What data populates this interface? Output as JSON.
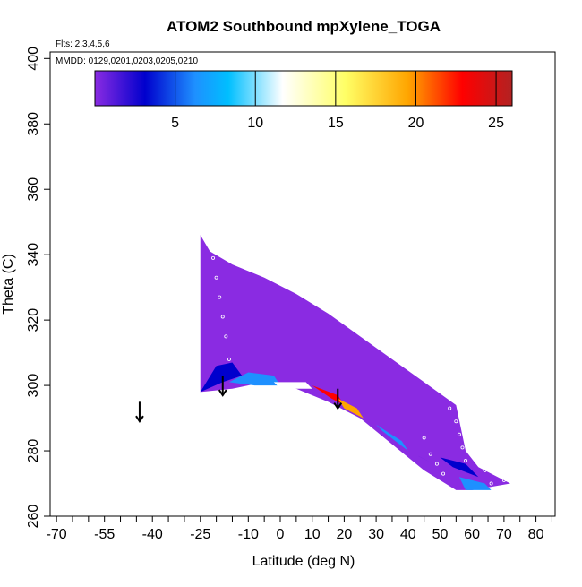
{
  "chart_data": {
    "type": "heatmap",
    "title": "ATOM2 Southbound mpXylene_TOGA",
    "annotations": {
      "flights": "Flts: 2,3,4,5,6",
      "dates": "MMDD: 0129,0201,0203,0205,0210"
    },
    "xlabel": "Latitude (deg N)",
    "ylabel": "Theta (C)",
    "xlim": [
      -72,
      86
    ],
    "ylim": [
      260,
      402
    ],
    "x_ticks": [
      -70,
      -55,
      -40,
      -25,
      -10,
      0,
      10,
      20,
      30,
      40,
      50,
      60,
      70,
      80
    ],
    "x_minor_ticks": [
      -65,
      -60,
      -50,
      -45,
      -35,
      -30,
      -20,
      -15,
      -5,
      5,
      15,
      25,
      35,
      45,
      55,
      65,
      75,
      85
    ],
    "y_ticks": [
      260,
      280,
      300,
      320,
      340,
      360,
      380,
      400
    ],
    "colorbar": {
      "range": [
        0,
        26
      ],
      "ticks": [
        5,
        10,
        15,
        20,
        25
      ],
      "colors": [
        "#8a2be2",
        "#0000cd",
        "#1e90ff",
        "#00bfff",
        "#ffffff",
        "#ffff66",
        "#ffa500",
        "#ff0000",
        "#b22222"
      ]
    },
    "field_outline": [
      [
        -25,
        298
      ],
      [
        -25,
        346
      ],
      [
        -22,
        341
      ],
      [
        -15,
        337
      ],
      [
        -5,
        333
      ],
      [
        5,
        328
      ],
      [
        15,
        322
      ],
      [
        25,
        315
      ],
      [
        35,
        308
      ],
      [
        45,
        301
      ],
      [
        55,
        294
      ],
      [
        58,
        280
      ],
      [
        62,
        275
      ],
      [
        70,
        271
      ],
      [
        72,
        270
      ],
      [
        60,
        268
      ],
      [
        55,
        268
      ],
      [
        45,
        274
      ],
      [
        35,
        282
      ],
      [
        25,
        290
      ],
      [
        15,
        295
      ],
      [
        5,
        299
      ],
      [
        -5,
        301
      ],
      [
        -15,
        299
      ]
    ],
    "field_patches": [
      {
        "color": "#0000cd",
        "poly": [
          [
            -25,
            298
          ],
          [
            -20,
            306
          ],
          [
            -15,
            307
          ],
          [
            -12,
            303
          ],
          [
            -18,
            301
          ]
        ]
      },
      {
        "color": "#1e90ff",
        "poly": [
          [
            -16,
            301
          ],
          [
            -10,
            304
          ],
          [
            -2,
            303
          ],
          [
            0,
            300
          ],
          [
            -8,
            300
          ]
        ]
      },
      {
        "color": "#ffffff",
        "poly": [
          [
            -2,
            301
          ],
          [
            8,
            301
          ],
          [
            10,
            299
          ],
          [
            0,
            299
          ]
        ]
      },
      {
        "color": "#ff0000",
        "poly": [
          [
            10,
            300
          ],
          [
            18,
            297
          ],
          [
            20,
            294
          ],
          [
            16,
            296
          ]
        ]
      },
      {
        "color": "#ffa500",
        "poly": [
          [
            18,
            296
          ],
          [
            24,
            293
          ],
          [
            26,
            290
          ],
          [
            20,
            293
          ]
        ]
      },
      {
        "color": "#1e90ff",
        "poly": [
          [
            30,
            288
          ],
          [
            38,
            283
          ],
          [
            40,
            280
          ],
          [
            32,
            286
          ]
        ]
      },
      {
        "color": "#0000cd",
        "poly": [
          [
            50,
            278
          ],
          [
            58,
            276
          ],
          [
            62,
            272
          ],
          [
            54,
            275
          ]
        ]
      },
      {
        "color": "#0000cd",
        "poly": [
          [
            40,
            280
          ],
          [
            48,
            276
          ],
          [
            52,
            274
          ],
          [
            44,
            278
          ]
        ]
      },
      {
        "color": "#1e90ff",
        "poly": [
          [
            56,
            272
          ],
          [
            64,
            270
          ],
          [
            66,
            268
          ],
          [
            58,
            268
          ]
        ]
      }
    ],
    "sample_points": [
      [
        -22,
        345
      ],
      [
        -21,
        339
      ],
      [
        -20,
        333
      ],
      [
        -19,
        327
      ],
      [
        -18,
        321
      ],
      [
        -17,
        315
      ],
      [
        -16,
        308
      ],
      [
        38,
        318
      ],
      [
        38,
        310
      ],
      [
        53,
        293
      ],
      [
        55,
        289
      ],
      [
        56,
        285
      ],
      [
        57,
        281
      ],
      [
        58,
        277
      ],
      [
        60,
        287
      ],
      [
        62,
        282
      ],
      [
        63,
        278
      ],
      [
        64,
        274
      ],
      [
        66,
        270
      ],
      [
        70,
        271
      ],
      [
        72,
        270
      ],
      [
        45,
        284
      ],
      [
        47,
        279
      ],
      [
        49,
        276
      ],
      [
        51,
        273
      ]
    ],
    "arrows": [
      {
        "x": -44,
        "y_top": 295,
        "y_bottom": 289
      },
      {
        "x": -18,
        "y_top": 303,
        "y_bottom": 297
      },
      {
        "x": 18,
        "y_top": 299,
        "y_bottom": 293
      }
    ]
  }
}
